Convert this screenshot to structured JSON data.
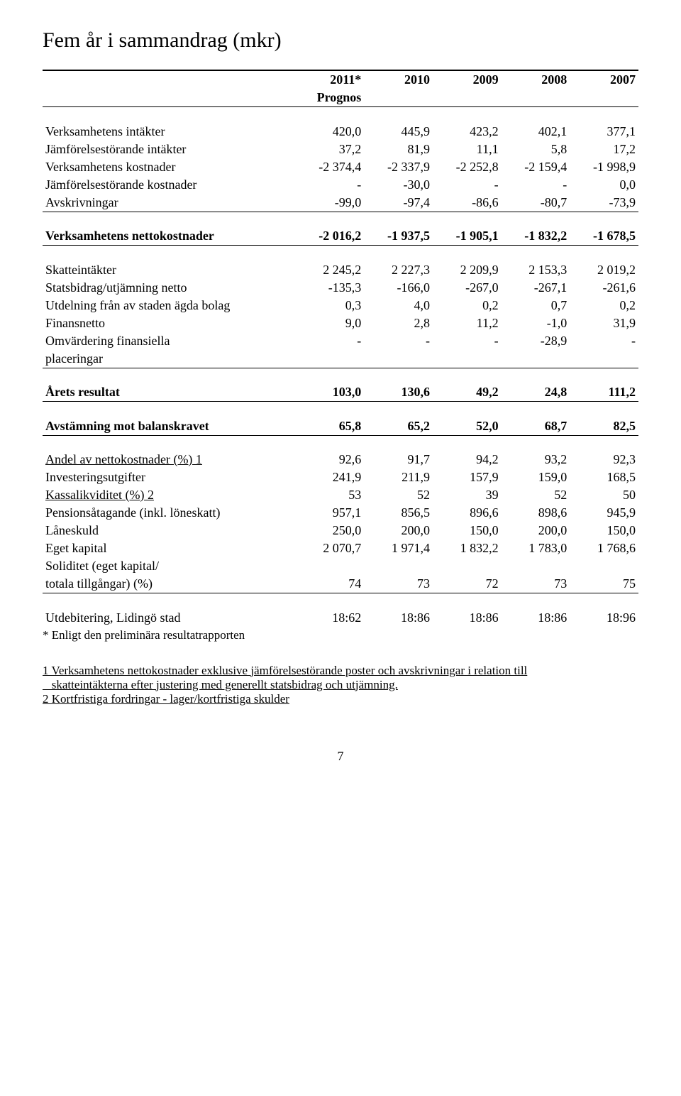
{
  "title": "Fem år i sammandrag (mkr)",
  "columns": [
    "2011*",
    "2010",
    "2009",
    "2008",
    "2007"
  ],
  "sublabel": "Prognos",
  "rows": {
    "verksamhetens_intakter": {
      "label": "Verksamhetens intäkter",
      "v": [
        "420,0",
        "445,9",
        "423,2",
        "402,1",
        "377,1"
      ]
    },
    "jamfor_intakter": {
      "label": "Jämförelsestörande intäkter",
      "v": [
        "37,2",
        "81,9",
        "11,1",
        "5,8",
        "17,2"
      ]
    },
    "verksamhetens_kostnader": {
      "label": "Verksamhetens kostnader",
      "v": [
        "-2 374,4",
        "-2 337,9",
        "-2 252,8",
        "-2 159,4",
        "-1 998,9"
      ]
    },
    "jamfor_kostnader": {
      "label": "Jämförelsestörande kostnader",
      "v": [
        "-",
        "-30,0",
        "-",
        "-",
        "0,0"
      ]
    },
    "avskrivningar": {
      "label": "Avskrivningar",
      "v": [
        "-99,0",
        "-97,4",
        "-86,6",
        "-80,7",
        "-73,9"
      ]
    },
    "nettokostnader": {
      "label": "Verksamhetens nettokostnader",
      "v": [
        "-2 016,2",
        "-1 937,5",
        "-1 905,1",
        "-1 832,2",
        "-1 678,5"
      ]
    },
    "skatteintakter": {
      "label": "Skatteintäkter",
      "v": [
        "2 245,2",
        "2 227,3",
        "2 209,9",
        "2 153,3",
        "2 019,2"
      ]
    },
    "statsbidrag": {
      "label": "Statsbidrag/utjämning netto",
      "v": [
        "-135,3",
        "-166,0",
        "-267,0",
        "-267,1",
        "-261,6"
      ]
    },
    "utdelning": {
      "label": "Utdelning från av staden ägda bolag",
      "v": [
        "0,3",
        "4,0",
        "0,2",
        "0,7",
        "0,2"
      ]
    },
    "finansnetto": {
      "label": "Finansnetto",
      "v": [
        "9,0",
        "2,8",
        "11,2",
        "-1,0",
        "31,9"
      ]
    },
    "omvardering_a": {
      "label": "Omvärdering finansiella",
      "v": [
        "-",
        "-",
        "-",
        "-28,9",
        "-"
      ]
    },
    "omvardering_b": {
      "label": "placeringar"
    },
    "arets_resultat": {
      "label": "Årets resultat",
      "v": [
        "103,0",
        "130,6",
        "49,2",
        "24,8",
        "111,2"
      ]
    },
    "avstamning": {
      "label": "Avstämning mot balanskravet",
      "v": [
        "65,8",
        "65,2",
        "52,0",
        "68,7",
        "82,5"
      ]
    },
    "andel_netto": {
      "label": "Andel av nettokostnader (%) 1",
      "v": [
        "92,6",
        "91,7",
        "94,2",
        "93,2",
        "92,3"
      ]
    },
    "investeringsutgifter": {
      "label": "Investeringsutgifter",
      "v": [
        "241,9",
        "211,9",
        "157,9",
        "159,0",
        "168,5"
      ]
    },
    "kassalikviditet": {
      "label": "Kassalikviditet (%) 2",
      "v": [
        "53",
        "52",
        "39",
        "52",
        "50"
      ]
    },
    "pensionsataganden": {
      "label": "Pensionsåtagande (inkl. löneskatt)",
      "v": [
        "957,1",
        "856,5",
        "896,6",
        "898,6",
        "945,9"
      ]
    },
    "laneskuld": {
      "label": "Låneskuld",
      "v": [
        "250,0",
        "200,0",
        "150,0",
        "200,0",
        "150,0"
      ]
    },
    "eget_kapital": {
      "label": "Eget kapital",
      "v": [
        "2 070,7",
        "1 971,4",
        "1 832,2",
        "1 783,0",
        "1 768,6"
      ]
    },
    "soliditet_a": {
      "label": "Soliditet (eget kapital/"
    },
    "soliditet_b": {
      "label": "totala tillgångar) (%)",
      "v": [
        "74",
        "73",
        "72",
        "73",
        "75"
      ]
    },
    "utdebitering": {
      "label": "Utdebitering, Lidingö stad",
      "v": [
        "18:62",
        "18:86",
        "18:86",
        "18:86",
        "18:96"
      ]
    }
  },
  "note": "* Enligt den preliminära resultatrapporten",
  "footnotes": {
    "f1a": "1 Verksamhetens nettokostnader exklusive jämförelsestörande poster och avskrivningar i relation till",
    "f1b": "   skatteintäkterna efter justering med generellt statsbidrag och utjämning.",
    "f2": "2 Kortfristiga fordringar - lager/kortfristiga skulder"
  },
  "page": "7"
}
